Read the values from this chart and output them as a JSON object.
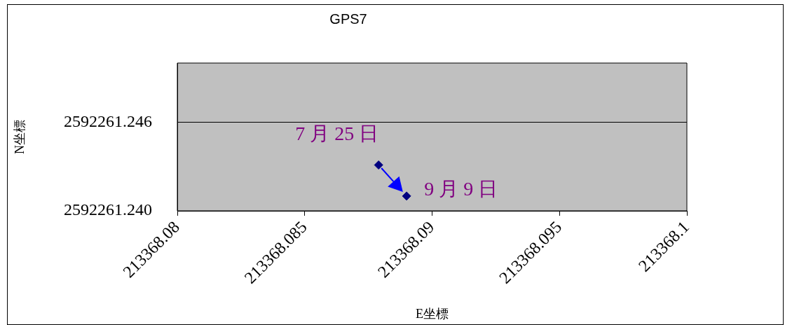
{
  "chart_data": {
    "type": "scatter",
    "title": "GPS7",
    "xlabel": "E坐標",
    "ylabel": "N坐標",
    "x": [
      213368.0879,
      213368.089
    ],
    "series": [
      {
        "color": "#000080",
        "values": [
          2592261.2431,
          2592261.241
        ]
      }
    ],
    "xlim": [
      213368.08,
      213368.1
    ],
    "xticks": [
      213368.08,
      213368.085,
      213368.09,
      213368.095,
      213368.1
    ],
    "ylim": [
      2592261.24,
      2592261.25
    ],
    "yticks": [
      {
        "value": 2592261.24,
        "label": "2592261.240"
      },
      2592261.246
    ],
    "annotations": [
      {
        "text": "7 月 25 日",
        "x": 213368.0879,
        "y": 2592261.2431
      },
      {
        "text": "9 月 9 日",
        "x": 213368.089,
        "y": 2592261.241
      }
    ],
    "grid": "y",
    "marker": "diamond",
    "legend": false
  }
}
